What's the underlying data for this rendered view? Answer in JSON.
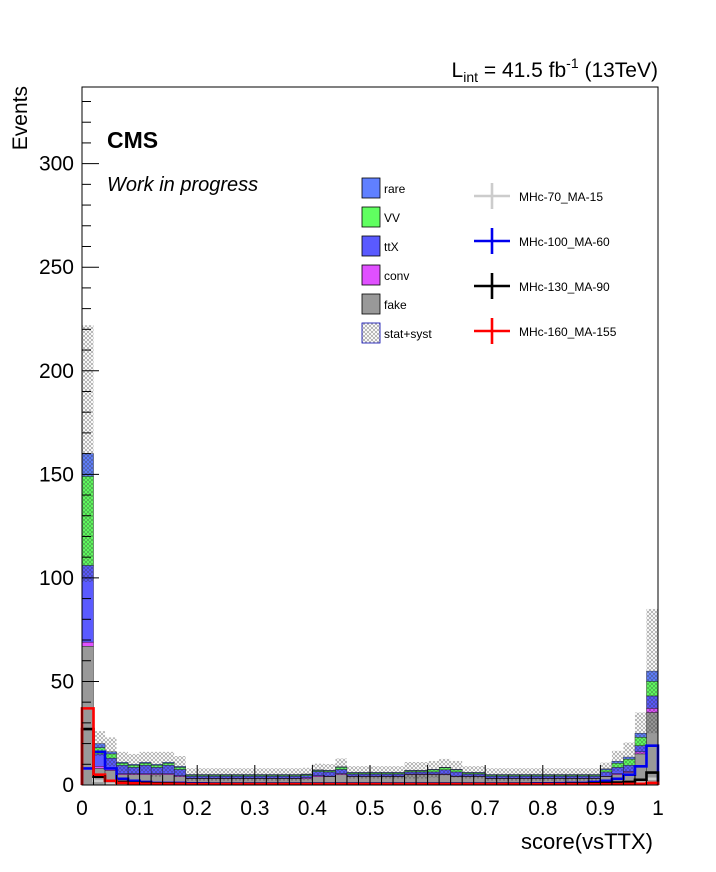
{
  "header": {
    "lumi_prefix": "L",
    "lumi_sub": "int",
    "lumi_value": " = 41.5 fb",
    "lumi_sup": "-1",
    "lumi_energy": " (13TeV)"
  },
  "labels": {
    "experiment": "CMS",
    "status": "Work in progress"
  },
  "colors": {
    "rare": "#6080ff",
    "VV": "#60ff60",
    "ttX": "#5a5aff",
    "conv": "#e050ff",
    "fake": "#999999",
    "sig_70": "#cccccc",
    "sig_100": "#0000ee",
    "sig_130": "#000000",
    "sig_160": "#ff0000"
  },
  "chart_data": {
    "type": "bar",
    "stacked": true,
    "xlabel": "score(vsTTX)",
    "ylabel": "Events",
    "xlim": [
      0,
      1
    ],
    "ylim": [
      0,
      337
    ],
    "x_ticks": [
      "0",
      "0.1",
      "0.2",
      "0.3",
      "0.4",
      "0.5",
      "0.6",
      "0.7",
      "0.8",
      "0.9",
      "1"
    ],
    "y_ticks": [
      "0",
      "50",
      "100",
      "150",
      "200",
      "250",
      "300"
    ],
    "bin_width": 0.02,
    "series": [
      {
        "name": "fake",
        "values": [
          67,
          8,
          7,
          5,
          5,
          5,
          5,
          5,
          4,
          3,
          3,
          3,
          3,
          3,
          3,
          3,
          3,
          3,
          3,
          3,
          4,
          4,
          5,
          4,
          4,
          4,
          4,
          4,
          5,
          5,
          5,
          5,
          4,
          4,
          4,
          3,
          3,
          3,
          3,
          3,
          3,
          3,
          3,
          3,
          3,
          4,
          5,
          6,
          15,
          35
        ]
      },
      {
        "name": "conv",
        "values": [
          2,
          1,
          1,
          0.5,
          0.5,
          0.5,
          0.5,
          0.5,
          0.5,
          0.3,
          0.3,
          0.3,
          0.3,
          0.3,
          0.3,
          0.3,
          0.3,
          0.3,
          0.3,
          0.5,
          0.5,
          0.3,
          0.5,
          0.3,
          0.3,
          0.3,
          0.3,
          0.3,
          0.3,
          0.3,
          0.3,
          0.3,
          0.3,
          0.3,
          0.3,
          0.3,
          0.3,
          0.3,
          0.3,
          0.3,
          0.3,
          0.3,
          0.3,
          0.3,
          0.3,
          0.3,
          0.5,
          0.5,
          1,
          2
        ]
      },
      {
        "name": "ttX",
        "values": [
          37,
          6,
          5,
          4,
          3,
          4,
          3,
          4,
          3,
          1,
          1,
          1,
          1,
          1,
          1,
          1,
          1,
          1,
          1,
          1,
          2,
          2,
          2,
          1,
          1,
          1,
          1,
          1,
          1,
          1,
          1,
          2,
          2,
          1,
          1,
          1,
          1,
          1,
          1,
          1,
          1,
          1,
          1,
          1,
          1,
          2,
          3,
          3,
          3,
          6
        ]
      },
      {
        "name": "VV",
        "values": [
          43,
          3,
          2,
          1,
          1,
          1,
          1,
          1,
          1,
          0.5,
          0.5,
          0.5,
          0.5,
          0.5,
          0.5,
          0.5,
          0.5,
          0.5,
          0.5,
          0.5,
          0.5,
          0.5,
          1,
          0.5,
          0.5,
          0.5,
          0.5,
          0.5,
          0.5,
          0.5,
          1,
          1,
          1,
          0.5,
          0.5,
          0.5,
          0.5,
          0.5,
          0.5,
          0.5,
          0.5,
          0.5,
          0.5,
          0.5,
          0.5,
          1,
          2,
          3,
          4,
          7
        ]
      },
      {
        "name": "rare",
        "values": [
          11,
          2,
          1,
          0.5,
          0.5,
          0.5,
          0.5,
          0.5,
          0.5,
          0.3,
          0.3,
          0.3,
          0.3,
          0.3,
          0.3,
          0.3,
          0.3,
          0.3,
          0.3,
          0.3,
          0.3,
          0.3,
          0.3,
          0.3,
          0.3,
          0.3,
          0.3,
          0.3,
          0.3,
          0.3,
          0.3,
          0.3,
          0.3,
          0.3,
          0.3,
          0.3,
          0.3,
          0.3,
          0.3,
          0.3,
          0.3,
          0.3,
          0.3,
          0.3,
          0.3,
          0.5,
          1,
          1,
          2,
          5
        ]
      }
    ],
    "uncertainty": {
      "name": "stat+syst",
      "values": [
        62,
        6,
        7,
        5,
        5,
        5,
        6,
        5,
        5,
        3,
        3,
        3,
        3,
        3,
        3,
        3,
        3,
        3,
        3,
        3,
        3,
        3,
        4,
        3,
        3,
        3,
        3,
        3,
        4,
        4,
        4,
        4,
        4,
        3,
        3,
        3,
        3,
        3,
        3,
        3,
        3,
        3,
        3,
        3,
        3,
        3,
        5,
        7,
        10,
        30
      ]
    },
    "signals": [
      {
        "name": "MHc-70_MA-15",
        "values": [
          8,
          2,
          1,
          0.8,
          0.6,
          0.5,
          0.5,
          0.5,
          0.4,
          0.3,
          0.3,
          0.3,
          0.3,
          0.3,
          0.3,
          0.3,
          0.3,
          0.3,
          0.3,
          0.3,
          0.3,
          0.3,
          0.3,
          0.3,
          0.3,
          0.3,
          0.3,
          0.3,
          0.3,
          0.3,
          0.3,
          0.3,
          0.3,
          0.3,
          0.3,
          0.3,
          0.3,
          0.3,
          0.3,
          0.3,
          0.3,
          0.3,
          0.3,
          0.3,
          0.3,
          0.4,
          0.5,
          0.8,
          1.5,
          3
        ]
      },
      {
        "name": "MHc-100_MA-60",
        "values": [
          8,
          16,
          8,
          3,
          2,
          1.5,
          1,
          1,
          1,
          0.8,
          0.8,
          0.7,
          0.7,
          0.7,
          0.7,
          0.7,
          0.7,
          0.7,
          0.7,
          0.7,
          0.7,
          0.7,
          0.7,
          0.7,
          0.7,
          0.7,
          0.7,
          0.7,
          0.7,
          0.7,
          0.7,
          0.7,
          0.7,
          0.7,
          0.7,
          0.7,
          0.7,
          0.7,
          0.7,
          0.8,
          0.8,
          0.9,
          1,
          1,
          1.5,
          2,
          3,
          5,
          9,
          19
        ]
      },
      {
        "name": "MHc-130_MA-90",
        "values": [
          27,
          4,
          2,
          1.5,
          1,
          1,
          0.8,
          0.8,
          0.7,
          0.6,
          0.6,
          0.6,
          0.6,
          0.6,
          0.6,
          0.6,
          0.6,
          0.6,
          0.6,
          0.6,
          0.6,
          0.6,
          0.6,
          0.6,
          0.6,
          0.6,
          0.6,
          0.6,
          0.6,
          0.6,
          0.6,
          0.6,
          0.6,
          0.6,
          0.6,
          0.6,
          0.6,
          0.6,
          0.6,
          0.6,
          0.6,
          0.6,
          0.7,
          0.7,
          0.8,
          1,
          1.2,
          1.5,
          2.5,
          6
        ]
      },
      {
        "name": "MHc-160_MA-155",
        "values": [
          37,
          5,
          2,
          1,
          0.8,
          0.6,
          0.5,
          0.5,
          0.5,
          0.4,
          0.4,
          0.4,
          0.4,
          0.4,
          0.4,
          0.4,
          0.4,
          0.4,
          0.4,
          0.4,
          0.4,
          0.4,
          0.4,
          0.4,
          0.4,
          0.4,
          0.4,
          0.4,
          0.4,
          0.4,
          0.4,
          0.4,
          0.4,
          0.4,
          0.4,
          0.4,
          0.4,
          0.4,
          0.4,
          0.4,
          0.4,
          0.4,
          0.4,
          0.4,
          0.4,
          0.4,
          0.4,
          0.5,
          0.6,
          1
        ]
      }
    ],
    "legend": {
      "placement": "top-right",
      "stack_entries": [
        "rare",
        "VV",
        "ttX",
        "conv",
        "fake",
        "stat+syst"
      ],
      "signal_entries": [
        "MHc-70_MA-15",
        "MHc-100_MA-60",
        "MHc-130_MA-90",
        "MHc-160_MA-155"
      ]
    }
  }
}
